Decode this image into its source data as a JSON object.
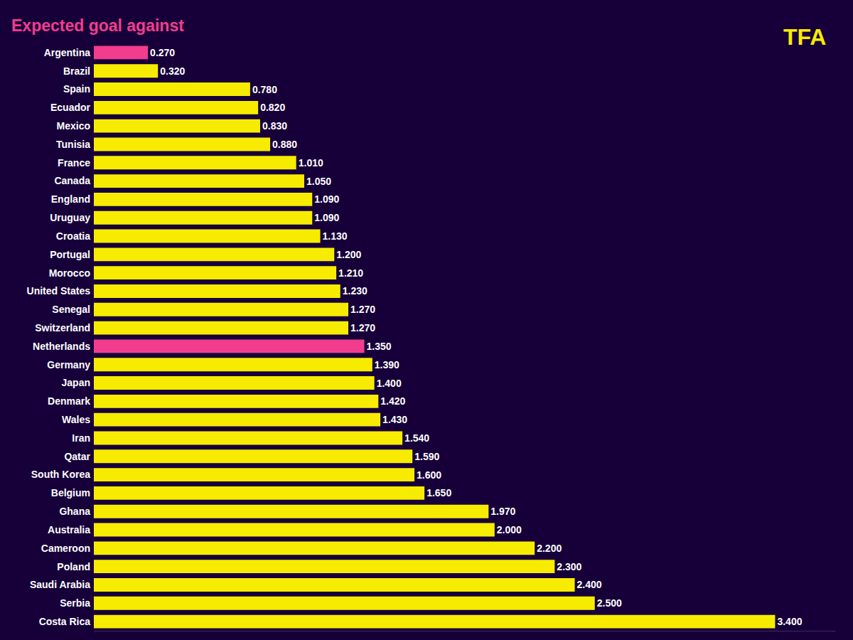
{
  "chart_data": {
    "type": "bar",
    "title": "Expected goal against",
    "annotations": [
      {
        "text": "TFA"
      }
    ],
    "orientation": "horizontal",
    "categories": [
      "Argentina",
      "Brazil",
      "Spain",
      "Ecuador",
      "Mexico",
      "Tunisia",
      "France",
      "Canada",
      "England",
      "Uruguay",
      "Croatia",
      "Portugal",
      "Morocco",
      "United States",
      "Senegal",
      "Switzerland",
      "Netherlands",
      "Germany",
      "Japan",
      "Denmark",
      "Wales",
      "Iran",
      "Qatar",
      "South Korea",
      "Belgium",
      "Ghana",
      "Australia",
      "Cameroon",
      "Poland",
      "Saudi Arabia",
      "Serbia",
      "Costa Rica"
    ],
    "values": [
      0.27,
      0.32,
      0.78,
      0.82,
      0.83,
      0.88,
      1.01,
      1.05,
      1.09,
      1.09,
      1.13,
      1.2,
      1.21,
      1.23,
      1.27,
      1.27,
      1.35,
      1.39,
      1.4,
      1.42,
      1.43,
      1.54,
      1.59,
      1.6,
      1.65,
      1.97,
      2.0,
      2.2,
      2.3,
      2.4,
      2.5,
      3.4
    ],
    "value_labels": [
      "0.270",
      "0.320",
      "0.780",
      "0.820",
      "0.830",
      "0.880",
      "1.010",
      "1.050",
      "1.090",
      "1.090",
      "1.130",
      "1.200",
      "1.210",
      "1.230",
      "1.270",
      "1.270",
      "1.350",
      "1.390",
      "1.400",
      "1.420",
      "1.430",
      "1.540",
      "1.590",
      "1.600",
      "1.650",
      "1.970",
      "2.000",
      "2.200",
      "2.300",
      "2.400",
      "2.500",
      "3.400"
    ],
    "colors": [
      "#f23d8e",
      "#f7ec00",
      "#f7ec00",
      "#f7ec00",
      "#f7ec00",
      "#f7ec00",
      "#f7ec00",
      "#f7ec00",
      "#f7ec00",
      "#f7ec00",
      "#f7ec00",
      "#f7ec00",
      "#f7ec00",
      "#f7ec00",
      "#f7ec00",
      "#f7ec00",
      "#f23d8e",
      "#f7ec00",
      "#f7ec00",
      "#f7ec00",
      "#f7ec00",
      "#f7ec00",
      "#f7ec00",
      "#f7ec00",
      "#f7ec00",
      "#f7ec00",
      "#f7ec00",
      "#f7ec00",
      "#f7ec00",
      "#f7ec00",
      "#f7ec00",
      "#f7ec00"
    ],
    "xlim": [
      0,
      3.7
    ],
    "xticks": [],
    "grid": false,
    "data_labels": true,
    "tick_labels": "y"
  }
}
